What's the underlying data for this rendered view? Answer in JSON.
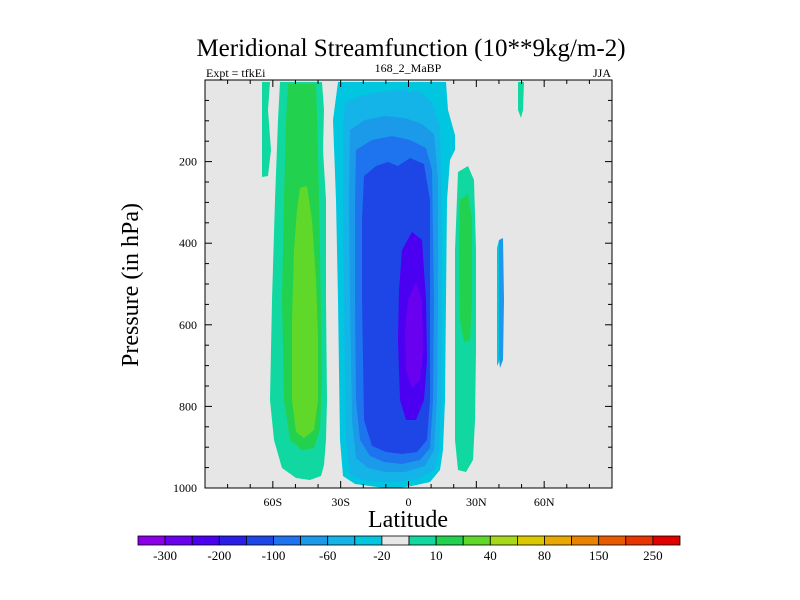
{
  "chart_data": {
    "type": "contour",
    "title": "Meridional Streamfunction (10**9kg/m-2)",
    "subtitle_left": "Expt = tfkEi",
    "subtitle_center": "168_2_MaBP",
    "subtitle_right": "JJA",
    "xlabel": "Latitude",
    "ylabel": "Pressure (in hPa)",
    "xlim": [
      -90,
      90
    ],
    "ylim": [
      1000,
      0
    ],
    "x_ticks": [
      {
        "value": -60,
        "label": "60S"
      },
      {
        "value": -30,
        "label": "30S"
      },
      {
        "value": 0,
        "label": "0"
      },
      {
        "value": 30,
        "label": "30N"
      },
      {
        "value": 60,
        "label": "60N"
      }
    ],
    "y_ticks": [
      {
        "value": 200,
        "label": "200"
      },
      {
        "value": 400,
        "label": "400"
      },
      {
        "value": 600,
        "label": "600"
      },
      {
        "value": 800,
        "label": "800"
      },
      {
        "value": 1000,
        "label": "1000"
      }
    ],
    "background_color": "#e6e6e6",
    "colorbar": {
      "colors": [
        "#8b00e8",
        "#6a00f0",
        "#4b00f2",
        "#2a1ee8",
        "#1e46e6",
        "#1e74ee",
        "#1a9ae8",
        "#14b4e8",
        "#00c6e0",
        "#e8e8e8",
        "#10d8a0",
        "#22d24e",
        "#60d82a",
        "#a8d81a",
        "#dcc800",
        "#e8a800",
        "#ea8200",
        "#e85a00",
        "#e83400",
        "#e00000"
      ],
      "labels": [
        "-300",
        "-200",
        "-100",
        "-60",
        "-20",
        "10",
        "40",
        "80",
        "150",
        "250"
      ],
      "label_boundaries": [
        1,
        3,
        5,
        7,
        9,
        11,
        13,
        15,
        17,
        19
      ]
    },
    "approx_regions": [
      {
        "level": 10,
        "lat_range": [
          -64,
          -59
        ],
        "p_range": [
          20,
          235
        ]
      },
      {
        "level": 10,
        "lat_range": [
          -60,
          -35
        ],
        "p_range": [
          20,
          980
        ]
      },
      {
        "level": 40,
        "lat_range": [
          -57,
          -38
        ],
        "p_range": [
          20,
          950
        ]
      },
      {
        "level": 80,
        "lat_range": [
          -53,
          -41
        ],
        "p_range": [
          270,
          870
        ]
      },
      {
        "level": -10,
        "lat_range": [
          -34,
          20
        ],
        "p_range": [
          20,
          1000
        ]
      },
      {
        "level": -60,
        "lat_range": [
          -28,
          12
        ],
        "p_range": [
          110,
          990
        ]
      },
      {
        "level": -100,
        "lat_range": [
          -22,
          11
        ],
        "p_range": [
          170,
          960
        ]
      },
      {
        "level": -200,
        "lat_range": [
          -5,
          10
        ],
        "p_range": [
          300,
          850
        ]
      },
      {
        "level": 10,
        "lat_range": [
          21,
          31
        ],
        "p_range": [
          160,
          980
        ]
      },
      {
        "level": 40,
        "lat_range": [
          23,
          29
        ],
        "p_range": [
          260,
          680
        ]
      },
      {
        "level": -10,
        "lat_range": [
          39,
          42
        ],
        "p_range": [
          390,
          720
        ]
      },
      {
        "level": 10,
        "lat_range": [
          49,
          52
        ],
        "p_range": [
          20,
          120
        ]
      }
    ]
  }
}
